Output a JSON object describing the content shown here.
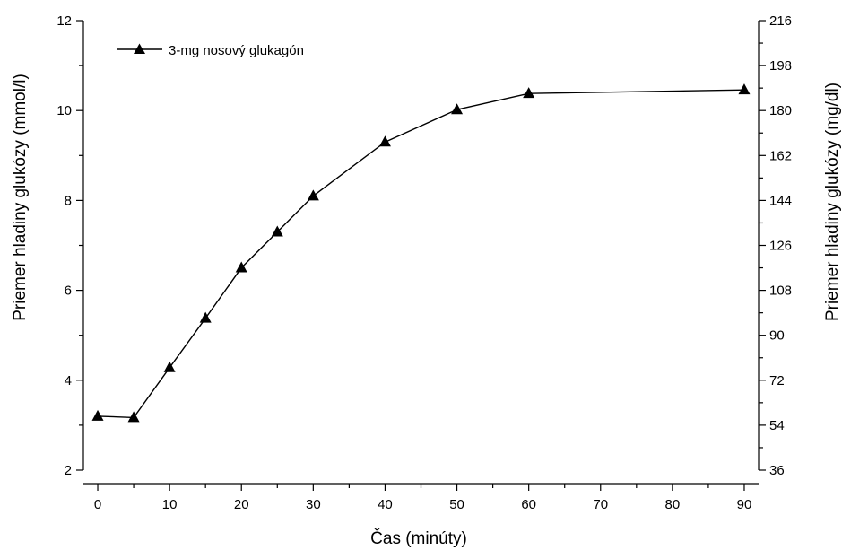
{
  "chart_data": {
    "type": "line",
    "xlabel": "Čas (minúty)",
    "ylabel": "Priemer hladiny glukózy (mmol/l)",
    "y2label": "Priemer hladiny glukózy (mg/dl)",
    "xlim": [
      -2,
      92
    ],
    "ylim": [
      2,
      12
    ],
    "y2lim": [
      36,
      216
    ],
    "xticks": [
      0,
      10,
      20,
      30,
      40,
      50,
      60,
      70,
      80,
      90
    ],
    "yticks": [
      2,
      4,
      6,
      8,
      10,
      12
    ],
    "y2ticks": [
      36,
      54,
      72,
      90,
      108,
      126,
      144,
      162,
      180,
      198,
      216
    ],
    "legend_position": "top-left",
    "grid": false,
    "series": [
      {
        "name": "3-mg nosový glukagón",
        "marker": "triangle",
        "color": "#000000",
        "x": [
          0,
          5,
          10,
          15,
          20,
          25,
          30,
          40,
          50,
          60,
          90
        ],
        "y": [
          3.2,
          3.17,
          4.28,
          5.38,
          6.5,
          7.3,
          8.1,
          9.3,
          10.02,
          10.38,
          10.46
        ]
      }
    ]
  }
}
